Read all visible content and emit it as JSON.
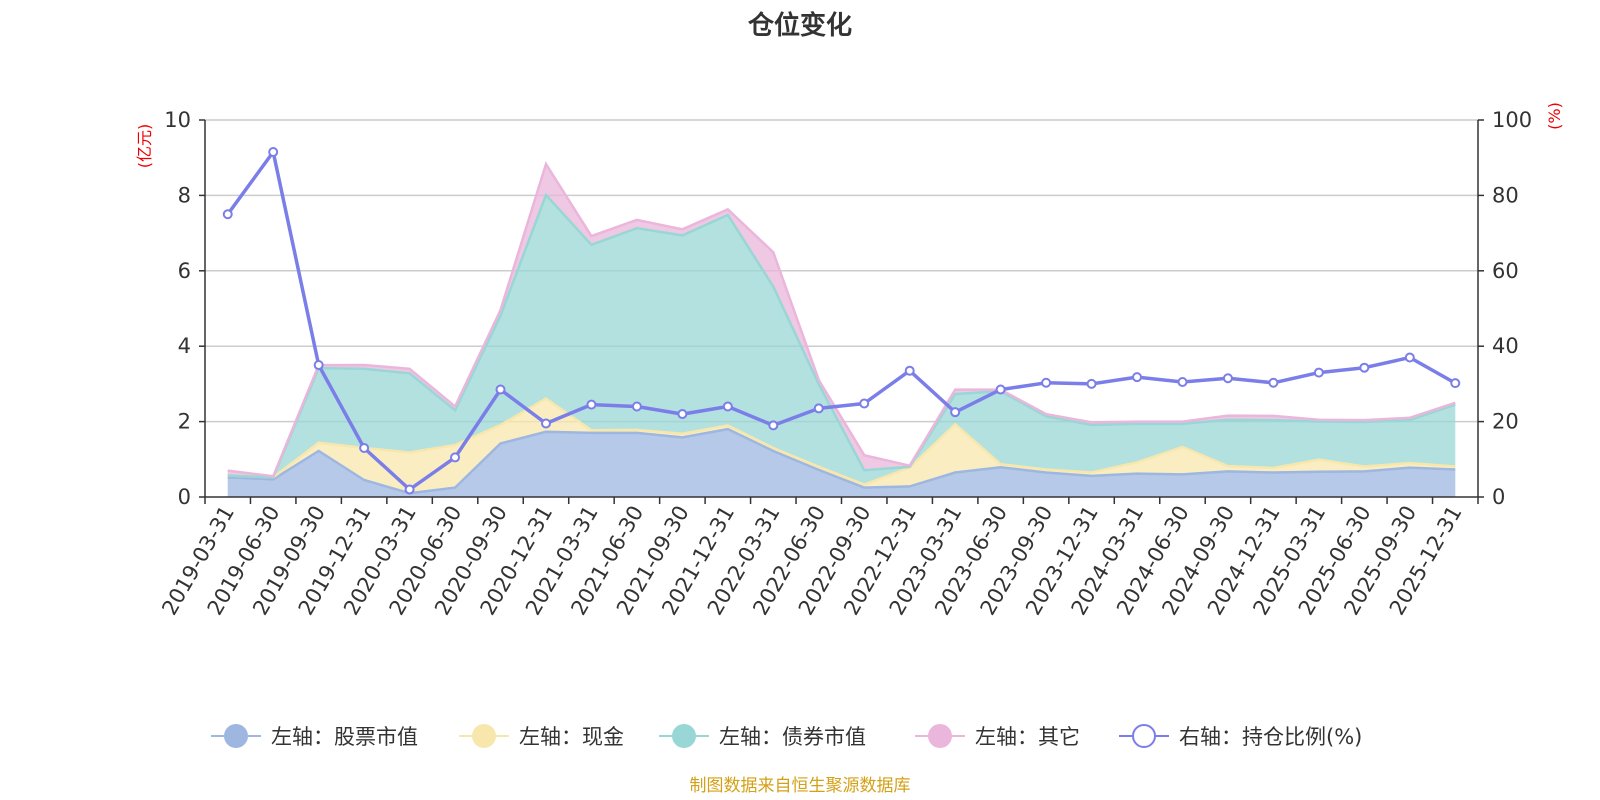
{
  "chart_data": {
    "type": "area",
    "title": "仓位变化",
    "left_unit": "(亿元)",
    "right_unit": "(%)",
    "left_ylim": [
      0,
      10
    ],
    "left_ticks": [
      "0",
      "2",
      "4",
      "6",
      "8",
      "10"
    ],
    "right_ylim": [
      0,
      100
    ],
    "right_ticks": [
      "0",
      "20",
      "40",
      "60",
      "80",
      "100"
    ],
    "categories": [
      "2019-03-31",
      "2019-06-30",
      "2019-09-30",
      "2019-12-31",
      "2020-03-31",
      "2020-06-30",
      "2020-09-30",
      "2020-12-31",
      "2021-03-31",
      "2021-06-30",
      "2021-09-30",
      "2021-12-31",
      "2022-03-31",
      "2022-06-30",
      "2022-09-30",
      "2022-12-31",
      "2023-03-31",
      "2023-06-30",
      "2023-09-30",
      "2023-12-31",
      "2024-03-31",
      "2024-06-30",
      "2024-09-30",
      "2024-12-31",
      "2025-03-31",
      "2025-06-30",
      "2025-09-30",
      "2025-12-31"
    ],
    "series": [
      {
        "name": "左轴：股票市值",
        "axis": "left",
        "stack": true,
        "color": "#9db7e0",
        "values": [
          0.52,
          0.47,
          1.22,
          0.45,
          0.1,
          0.25,
          1.42,
          1.73,
          1.7,
          1.7,
          1.58,
          1.8,
          1.22,
          0.72,
          0.25,
          0.28,
          0.65,
          0.79,
          0.65,
          0.56,
          0.62,
          0.6,
          0.68,
          0.65,
          0.67,
          0.68,
          0.78,
          0.73
        ]
      },
      {
        "name": "左轴：现金",
        "axis": "left",
        "stack": true,
        "color": "#f8e7ad",
        "values": [
          0.05,
          0.05,
          0.22,
          0.85,
          1.08,
          1.13,
          0.49,
          0.88,
          0.07,
          0.08,
          0.1,
          0.1,
          0.08,
          0.08,
          0.08,
          0.5,
          1.28,
          0.08,
          0.08,
          0.09,
          0.3,
          0.73,
          0.14,
          0.12,
          0.32,
          0.13,
          0.12,
          0.08
        ]
      },
      {
        "name": "左轴：债券市值",
        "axis": "left",
        "stack": true,
        "color": "#98d7d5",
        "values": [
          0,
          0,
          1.98,
          2.1,
          2.1,
          0.92,
          2.9,
          5.4,
          4.92,
          5.35,
          5.26,
          5.58,
          4.28,
          2.19,
          0.38,
          0.02,
          0.8,
          1.94,
          1.41,
          1.26,
          1.02,
          0.61,
          1.23,
          1.27,
          1.01,
          1.18,
          1.14,
          1.64
        ]
      },
      {
        "name": "左轴：其它",
        "axis": "left",
        "stack": true,
        "color": "#eab6db",
        "values": [
          0.13,
          0.03,
          0.08,
          0.1,
          0.12,
          0.1,
          0.15,
          0.82,
          0.23,
          0.22,
          0.16,
          0.15,
          0.91,
          0.11,
          0.4,
          0.03,
          0.12,
          0.04,
          0.06,
          0.07,
          0.06,
          0.06,
          0.11,
          0.11,
          0.05,
          0.05,
          0.06,
          0.05
        ]
      },
      {
        "name": "右轴：持仓比例(%)",
        "axis": "right",
        "stack": false,
        "color": "#7b7ee8",
        "values": [
          75,
          91.5,
          35,
          13,
          2,
          10.5,
          28.5,
          19.5,
          24.5,
          24,
          22,
          24,
          19,
          23.5,
          24.8,
          33.5,
          22.5,
          28.5,
          30.3,
          30,
          31.8,
          30.5,
          31.5,
          30.3,
          33,
          34.3,
          37,
          30.2
        ]
      }
    ]
  },
  "legend": [
    {
      "label": "左轴：股票市值",
      "marker": "filled-circle",
      "color": "#9db7e0"
    },
    {
      "label": "左轴：现金",
      "marker": "filled-circle",
      "color": "#f8e7ad"
    },
    {
      "label": "左轴：债券市值",
      "marker": "filled-circle",
      "color": "#98d7d5"
    },
    {
      "label": "左轴：其它",
      "marker": "filled-circle",
      "color": "#eab6db"
    },
    {
      "label": "右轴：持仓比例(%)",
      "marker": "hollow-circle",
      "color": "#7b7ee8"
    }
  ],
  "footer": "制图数据来自恒生聚源数据库"
}
